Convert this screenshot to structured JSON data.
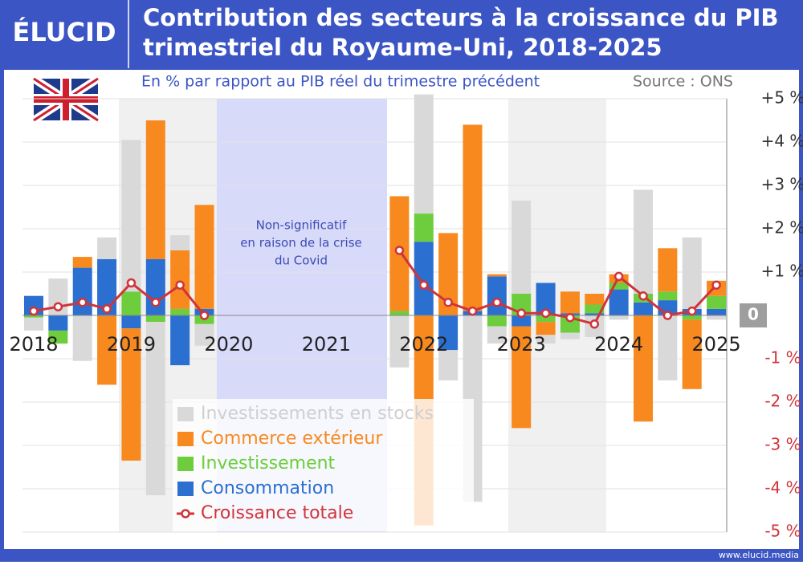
{
  "brand": "ÉLUCID",
  "footer": "www.elucid.media",
  "chart_data": {
    "type": "bar",
    "stacked": true,
    "title": [
      "Contribution des secteurs à la croissance du PIB",
      "trimestriel du Royaume-Uni, 2018-2025"
    ],
    "subtitle": "En % par rapport au PIB réel du trimestre précédent",
    "source": "Source : ONS",
    "annotation": [
      "Non-significatif",
      "en raison de la crise",
      "du Covid"
    ],
    "categories": [
      "2018",
      null,
      null,
      null,
      "2019",
      null,
      null,
      null,
      "2020",
      null,
      null,
      null,
      "2021",
      null,
      null,
      null,
      "2022",
      null,
      null,
      null,
      "2023",
      null,
      null,
      null,
      "2024",
      null,
      null,
      null,
      "2025"
    ],
    "series": [
      {
        "name": "Investissements en stocks",
        "color": "#d9d9d9",
        "values": [
          -0.3,
          0.85,
          -1.05,
          0.5,
          3.5,
          -4.0,
          0.35,
          -0.5,
          null,
          null,
          null,
          null,
          null,
          null,
          null,
          -1.2,
          2.75,
          -0.7,
          -4.3,
          -0.4,
          2.15,
          -0.2,
          -0.15,
          -0.5,
          -0.1,
          2.4,
          -1.5,
          1.65,
          -0.1
        ]
      },
      {
        "name": "Commerce extérieur",
        "color": "#f7891f",
        "values": [
          0,
          0,
          0.25,
          -1.6,
          -3.05,
          3.2,
          1.35,
          2.4,
          null,
          null,
          null,
          null,
          null,
          null,
          null,
          2.65,
          -4.85,
          1.9,
          4.3,
          0.05,
          -2.35,
          -0.3,
          0.5,
          0.25,
          0.2,
          -2.45,
          1.0,
          -1.6,
          0.35
        ]
      },
      {
        "name": "Investissement",
        "color": "#6dcd3c",
        "values": [
          -0.05,
          -0.3,
          0,
          0,
          0.55,
          -0.15,
          0.15,
          -0.2,
          null,
          null,
          null,
          null,
          null,
          null,
          null,
          0.1,
          0.65,
          0,
          0,
          -0.25,
          0.5,
          -0.15,
          -0.4,
          0.2,
          0.15,
          0.2,
          0.2,
          -0.1,
          0.3
        ]
      },
      {
        "name": "Consommation",
        "color": "#2b6fd0",
        "values": [
          0.45,
          -0.35,
          1.1,
          1.3,
          -0.3,
          1.3,
          -1.15,
          0.15,
          null,
          null,
          null,
          null,
          null,
          null,
          null,
          0,
          1.7,
          -0.8,
          0.1,
          0.9,
          -0.25,
          0.75,
          0.05,
          0.05,
          0.6,
          0.3,
          0.35,
          0.15,
          0.15
        ]
      },
      {
        "name": "Croissance totale",
        "type": "line",
        "color": "#d0343a",
        "values": [
          0.1,
          0.2,
          0.3,
          0.15,
          0.75,
          0.3,
          0.7,
          0.0,
          null,
          null,
          null,
          null,
          null,
          null,
          null,
          1.5,
          0.7,
          0.3,
          0.1,
          0.3,
          0.05,
          0.05,
          -0.05,
          -0.2,
          0.9,
          0.45,
          0.0,
          0.1,
          0.7
        ]
      }
    ],
    "ylim": [
      -5,
      5
    ],
    "yticks": [
      {
        "value": 5,
        "label": "+5 %"
      },
      {
        "value": 4,
        "label": "+4 %"
      },
      {
        "value": 3,
        "label": "+3 %"
      },
      {
        "value": 2,
        "label": "+2 %"
      },
      {
        "value": 1,
        "label": "+1 %"
      },
      0,
      {
        "value": -1,
        "label": "-1 %"
      },
      {
        "value": -2,
        "label": "-2 %"
      },
      {
        "value": -3,
        "label": "-3 %"
      },
      {
        "value": -4,
        "label": "-4 %"
      },
      {
        "value": -5,
        "label": "-5 %"
      }
    ],
    "grid": true,
    "legend": "bottom-left"
  }
}
